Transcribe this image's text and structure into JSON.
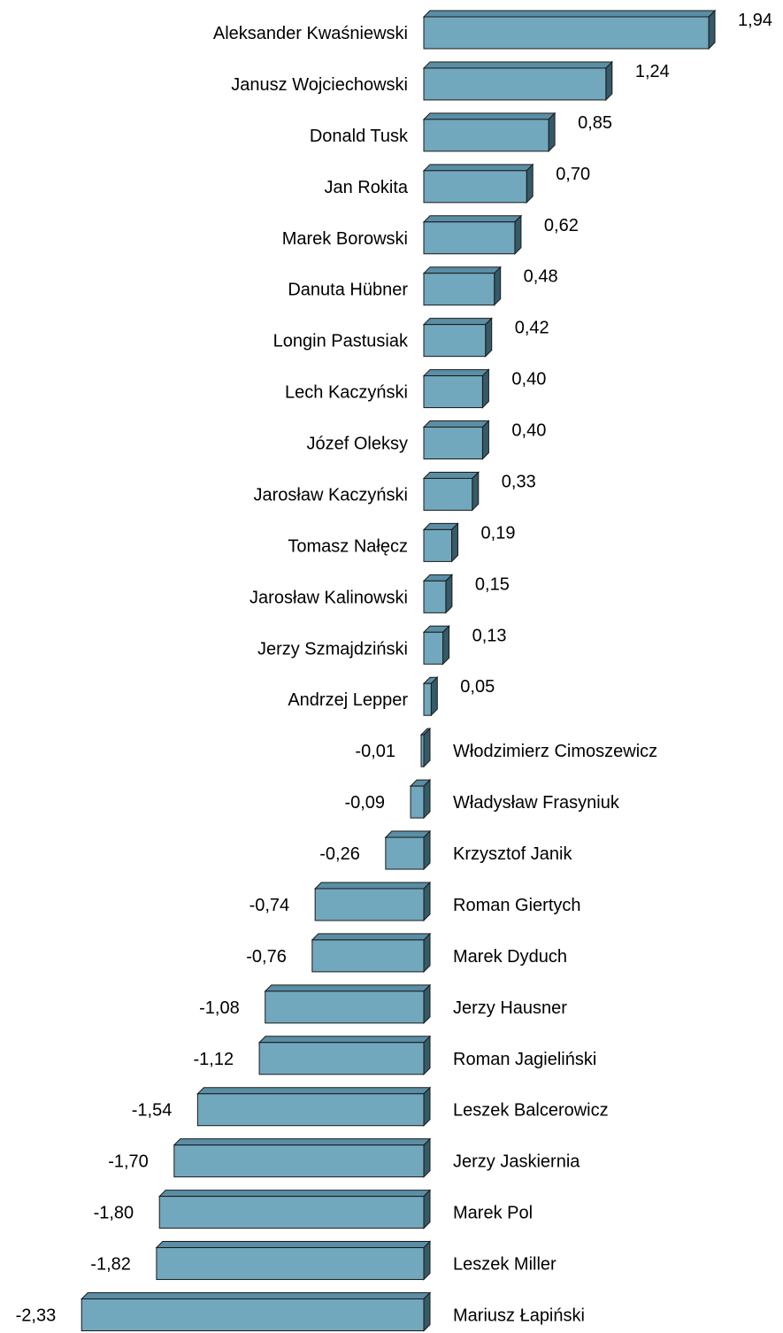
{
  "chart_data": {
    "type": "bar",
    "orientation": "horizontal",
    "style": "3d",
    "title": "",
    "xlabel": "",
    "ylabel": "",
    "grid": false,
    "legend": "none",
    "colors": {
      "front": "#72a8bd",
      "top": "#5a8ea5",
      "side": "#355a68",
      "edge": "#1a1a1a"
    },
    "categories": [
      "Aleksander Kwaśniewski",
      "Janusz Wojciechowski",
      "Donald Tusk",
      "Jan Rokita",
      "Marek Borowski",
      "Danuta Hübner",
      "Longin Pastusiak",
      "Lech Kaczyński",
      "Józef Oleksy",
      "Jarosław Kaczyński",
      "Tomasz Nałęcz",
      "Jarosław Kalinowski",
      "Jerzy Szmajdziński",
      "Andrzej Lepper",
      "Włodzimierz Cimoszewicz",
      "Władysław Frasyniuk",
      "Krzysztof Janik",
      "Roman Giertych",
      "Marek Dyduch",
      "Jerzy Hausner",
      "Roman Jagieliński",
      "Leszek Balcerowicz",
      "Jerzy Jaskiernia",
      "Marek Pol",
      "Leszek Miller",
      "Mariusz Łapiński"
    ],
    "values": [
      1.94,
      1.24,
      0.85,
      0.7,
      0.62,
      0.48,
      0.42,
      0.4,
      0.4,
      0.33,
      0.19,
      0.15,
      0.13,
      0.05,
      -0.01,
      -0.09,
      -0.26,
      -0.74,
      -0.76,
      -1.08,
      -1.12,
      -1.54,
      -1.7,
      -1.8,
      -1.82,
      -2.33
    ],
    "value_labels": [
      "1,94",
      "1,24",
      "0,85",
      "0,70",
      "0,62",
      "0,48",
      "0,42",
      "0,40",
      "0,40",
      "0,33",
      "0,19",
      "0,15",
      "0,13",
      "0,05",
      "-0,01",
      "-0,09",
      "-0,26",
      "-0,74",
      "-0,76",
      "-1,08",
      "-1,12",
      "-1,54",
      "-1,70",
      "-1,80",
      "-1,82",
      "-2,33"
    ]
  }
}
